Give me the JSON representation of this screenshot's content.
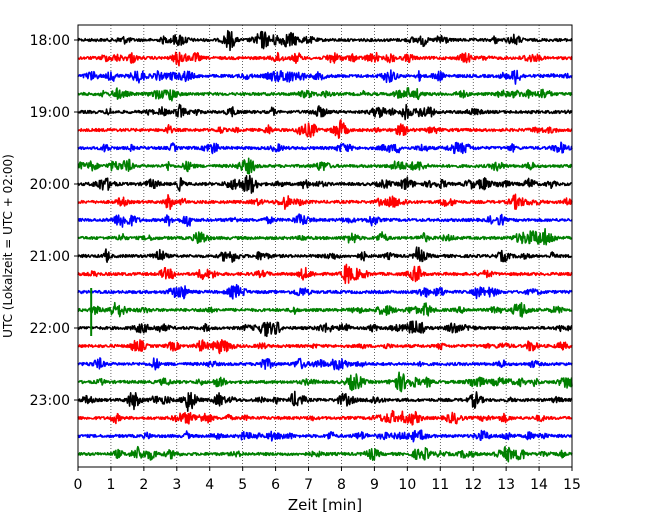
{
  "chart_data": {
    "type": "line",
    "title": "",
    "xlabel": "Zeit  [min]",
    "ylabel": "UTC (Lokalzeit = UTC + 02:00)",
    "xlim": [
      0,
      15
    ],
    "x_ticks": [
      "0",
      "1",
      "2",
      "3",
      "4",
      "5",
      "6",
      "7",
      "8",
      "9",
      "10",
      "11",
      "12",
      "13",
      "14",
      "15"
    ],
    "y_ticks": [
      "18:00",
      "19:00",
      "20:00",
      "21:00",
      "22:00",
      "23:00"
    ],
    "grid": "vertical dotted",
    "trace_interval_minutes": 15,
    "trace_start": "18:00",
    "trace_count": 24,
    "series_colors": [
      "#000000",
      "#ff0000",
      "#0000ff",
      "#008000"
    ]
  }
}
